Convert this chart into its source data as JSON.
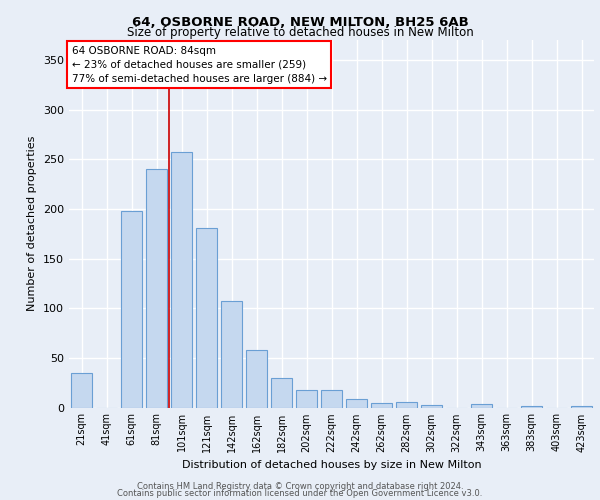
{
  "title1": "64, OSBORNE ROAD, NEW MILTON, BH25 6AB",
  "title2": "Size of property relative to detached houses in New Milton",
  "xlabel": "Distribution of detached houses by size in New Milton",
  "ylabel": "Number of detached properties",
  "categories": [
    "21sqm",
    "41sqm",
    "61sqm",
    "81sqm",
    "101sqm",
    "121sqm",
    "142sqm",
    "162sqm",
    "182sqm",
    "202sqm",
    "222sqm",
    "242sqm",
    "262sqm",
    "282sqm",
    "302sqm",
    "322sqm",
    "343sqm",
    "363sqm",
    "383sqm",
    "403sqm",
    "423sqm"
  ],
  "values": [
    35,
    0,
    198,
    240,
    257,
    181,
    107,
    58,
    30,
    18,
    18,
    9,
    5,
    6,
    3,
    0,
    4,
    0,
    2,
    0,
    2
  ],
  "bar_color": "#c5d8ef",
  "bar_edge_color": "#6a9fd4",
  "vline_x": 3.5,
  "vline_color": "#cc0000",
  "annotation_text": "64 OSBORNE ROAD: 84sqm\n← 23% of detached houses are smaller (259)\n77% of semi-detached houses are larger (884) →",
  "ylim": [
    0,
    370
  ],
  "yticks": [
    0,
    50,
    100,
    150,
    200,
    250,
    300,
    350
  ],
  "background_color": "#e8eef7",
  "plot_bg_color": "#e8eef7",
  "grid_color": "#ffffff",
  "footer1": "Contains HM Land Registry data © Crown copyright and database right 2024.",
  "footer2": "Contains public sector information licensed under the Open Government Licence v3.0."
}
